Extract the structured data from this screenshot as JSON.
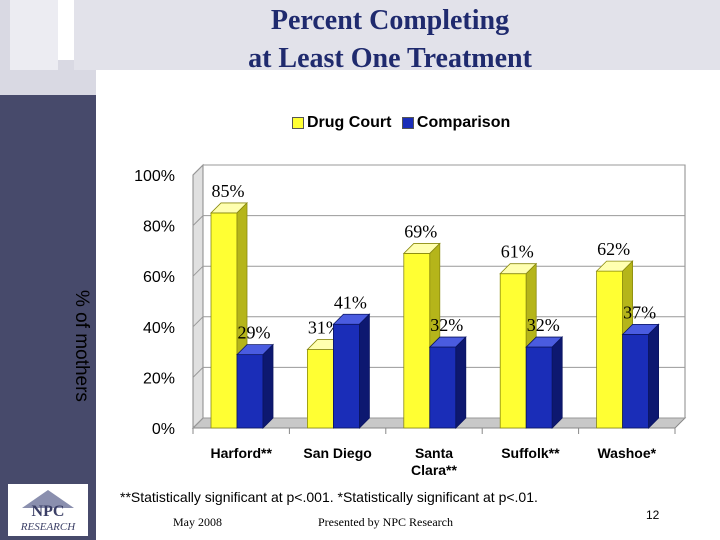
{
  "slide": {
    "title_line1": "Percent Completing",
    "title_line2": "at Least One Treatment",
    "footnote": "**Statistically significant at p<.001.   *Statistically significant at p<.01.",
    "date": "May 2008",
    "presenter": "Presented by NPC Research",
    "page_number": "12",
    "logo_text_top": "NPC",
    "logo_text_bottom": "RESEARCH"
  },
  "chart_data": {
    "type": "bar",
    "title": "Percent Completing at Least One Treatment",
    "ylabel": "% of mothers",
    "xlabel": "",
    "ylim": [
      0,
      100
    ],
    "yticks": [
      0,
      20,
      40,
      60,
      80,
      100
    ],
    "ytick_labels": [
      "0%",
      "20%",
      "40%",
      "60%",
      "80%",
      "100%"
    ],
    "categories": [
      "Harford**",
      "San Diego",
      "Santa Clara**",
      "Suffolk**",
      "Washoe*"
    ],
    "series": [
      {
        "name": "Drug Court",
        "color": "#ffff33",
        "values": [
          85,
          31,
          69,
          61,
          62
        ],
        "labels": [
          "85%",
          "31%",
          "69%",
          "61%",
          "62%"
        ]
      },
      {
        "name": "Comparison",
        "color": "#1a2db8",
        "values": [
          29,
          41,
          32,
          32,
          37
        ],
        "labels": [
          "29%",
          "41%",
          "32%",
          "32%",
          "37%"
        ]
      }
    ],
    "legend": "top"
  }
}
